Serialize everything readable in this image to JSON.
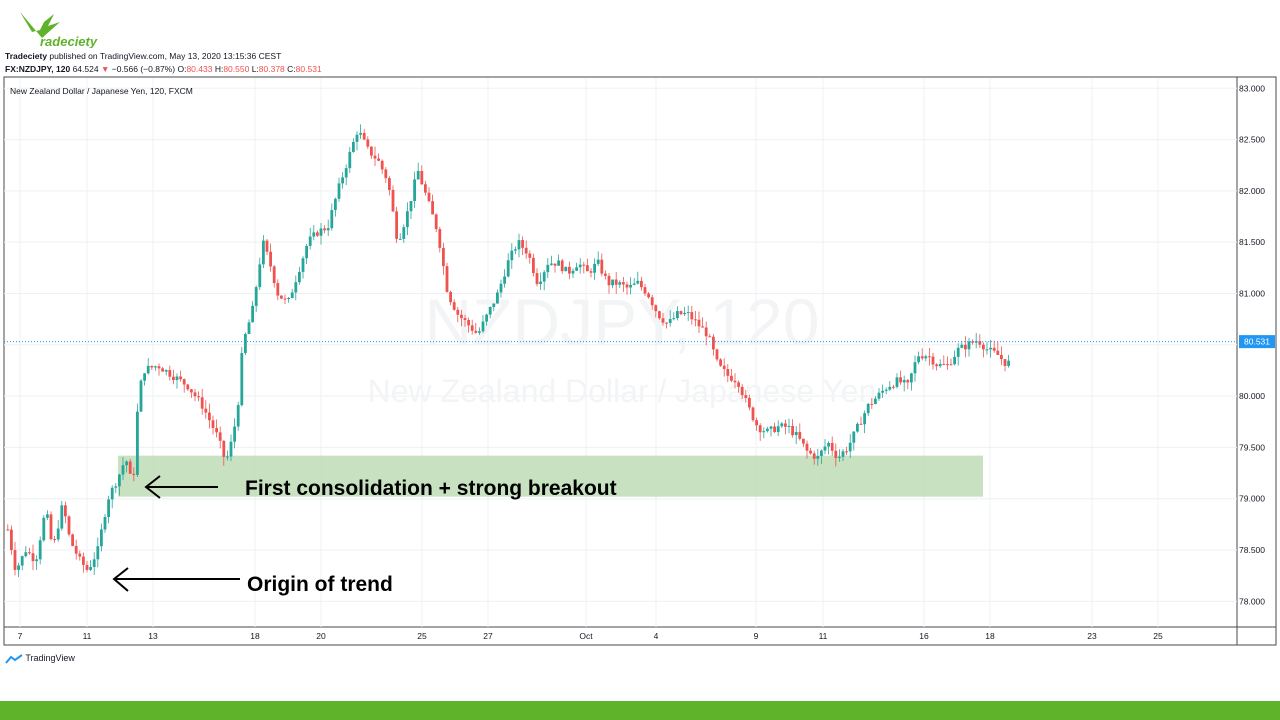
{
  "brand": {
    "logo_text": "Tradeciety"
  },
  "header": {
    "publisher": "Tradeciety",
    "published_text": " published on TradingView.com, May 13, 2020 13:15:36 CEST",
    "symbol": "FX:NZDJPY, 120",
    "last": "64.524",
    "change_arrow": "▼",
    "change": "−0.566 (−0.87%)",
    "o_label": "O:",
    "o_value": "80.433",
    "h_label": "H:",
    "h_value": "80.550",
    "l_label": "L:",
    "l_value": "80.378",
    "c_label": "C:",
    "c_value": "80.531"
  },
  "footer": {
    "tradingview_label": "TradingView"
  },
  "chart_data": {
    "type": "candlestick",
    "title": "New Zealand Dollar / Japanese Yen, 120, FXCM",
    "watermark_symbol": "NZDJPY, 120",
    "watermark_name": "New Zealand Dollar / Japanese Yen",
    "ylim": [
      77.75,
      83.1
    ],
    "y_ticks": [
      "83.000",
      "82.500",
      "82.000",
      "81.500",
      "81.000",
      "80.500",
      "80.000",
      "79.500",
      "79.000",
      "78.500",
      "78.000"
    ],
    "x_ticks": [
      "7",
      "11",
      "13",
      "18",
      "20",
      "25",
      "27",
      "Oct",
      "4",
      "9",
      "11",
      "16",
      "18",
      "23",
      "25"
    ],
    "last_price": 80.531,
    "last_price_label": "80.531",
    "grid": true,
    "colors": {
      "up": "#26a69a",
      "down": "#ef5350",
      "zone": "#b9d9b1",
      "price_line": "#2196f3"
    },
    "price_path": [
      [
        0,
        78.7
      ],
      [
        8,
        78.3
      ],
      [
        18,
        78.5
      ],
      [
        28,
        78.4
      ],
      [
        38,
        78.9
      ],
      [
        45,
        78.5
      ],
      [
        55,
        78.95
      ],
      [
        62,
        78.6
      ],
      [
        72,
        78.4
      ],
      [
        80,
        78.3
      ],
      [
        90,
        78.5
      ],
      [
        100,
        79.0
      ],
      [
        110,
        79.2
      ],
      [
        118,
        79.4
      ],
      [
        125,
        79.1
      ],
      [
        130,
        79.9
      ],
      [
        135,
        80.25
      ],
      [
        150,
        80.3
      ],
      [
        165,
        80.2
      ],
      [
        180,
        80.1
      ],
      [
        195,
        79.9
      ],
      [
        210,
        79.6
      ],
      [
        218,
        79.35
      ],
      [
        225,
        79.6
      ],
      [
        230,
        79.9
      ],
      [
        235,
        80.5
      ],
      [
        245,
        80.85
      ],
      [
        255,
        81.5
      ],
      [
        262,
        81.3
      ],
      [
        270,
        81.0
      ],
      [
        280,
        80.9
      ],
      [
        290,
        81.2
      ],
      [
        300,
        81.5
      ],
      [
        310,
        81.6
      ],
      [
        320,
        81.65
      ],
      [
        330,
        82.0
      ],
      [
        340,
        82.3
      ],
      [
        350,
        82.6
      ],
      [
        360,
        82.4
      ],
      [
        370,
        82.3
      ],
      [
        380,
        82.1
      ],
      [
        390,
        81.5
      ],
      [
        400,
        81.8
      ],
      [
        410,
        82.2
      ],
      [
        420,
        81.9
      ],
      [
        430,
        81.6
      ],
      [
        440,
        81.0
      ],
      [
        450,
        80.8
      ],
      [
        460,
        80.7
      ],
      [
        470,
        80.6
      ],
      [
        480,
        80.8
      ],
      [
        490,
        81.0
      ],
      [
        500,
        81.3
      ],
      [
        510,
        81.5
      ],
      [
        520,
        81.4
      ],
      [
        530,
        81.1
      ],
      [
        540,
        81.3
      ],
      [
        550,
        81.3
      ],
      [
        560,
        81.2
      ],
      [
        570,
        81.3
      ],
      [
        580,
        81.2
      ],
      [
        590,
        81.3
      ],
      [
        600,
        81.1
      ],
      [
        610,
        81.1
      ],
      [
        620,
        81.05
      ],
      [
        630,
        81.1
      ],
      [
        640,
        81.0
      ],
      [
        650,
        80.8
      ],
      [
        660,
        80.7
      ],
      [
        670,
        80.8
      ],
      [
        680,
        80.8
      ],
      [
        690,
        80.7
      ],
      [
        700,
        80.6
      ],
      [
        710,
        80.3
      ],
      [
        720,
        80.2
      ],
      [
        730,
        80.15
      ],
      [
        740,
        79.9
      ],
      [
        750,
        79.7
      ],
      [
        760,
        79.65
      ],
      [
        770,
        79.7
      ],
      [
        780,
        79.7
      ],
      [
        790,
        79.6
      ],
      [
        800,
        79.45
      ],
      [
        810,
        79.4
      ],
      [
        820,
        79.55
      ],
      [
        830,
        79.4
      ],
      [
        840,
        79.5
      ],
      [
        850,
        79.7
      ],
      [
        860,
        79.9
      ],
      [
        870,
        80.0
      ],
      [
        880,
        80.1
      ],
      [
        890,
        80.15
      ],
      [
        900,
        80.1
      ],
      [
        910,
        80.4
      ],
      [
        920,
        80.4
      ],
      [
        930,
        80.3
      ],
      [
        940,
        80.3
      ],
      [
        950,
        80.45
      ],
      [
        960,
        80.5
      ],
      [
        970,
        80.55
      ],
      [
        980,
        80.45
      ],
      [
        990,
        80.4
      ],
      [
        1000,
        80.3
      ],
      [
        1008,
        80.531
      ]
    ],
    "annotations": [
      {
        "text": "First consolidation + strong breakout",
        "type": "zone",
        "y_top": 79.42,
        "y_bottom": 79.02
      },
      {
        "text": "Origin of trend",
        "type": "arrow"
      }
    ]
  }
}
